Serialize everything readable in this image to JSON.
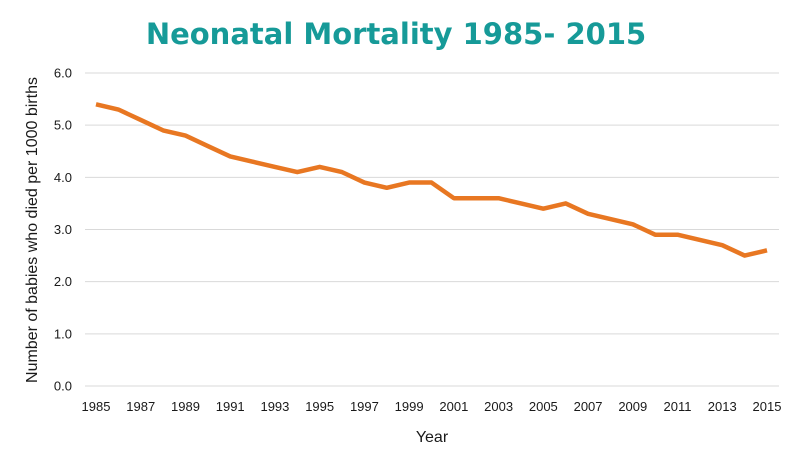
{
  "chart_data": {
    "type": "line",
    "title": "Neonatal Mortality 1985- 2015",
    "xlabel": "Year",
    "ylabel": "Number of babies who died per 1000 births",
    "ylim": [
      0,
      6
    ],
    "y_ticks": [
      "0.0",
      "1.0",
      "2.0",
      "3.0",
      "4.0",
      "5.0",
      "6.0"
    ],
    "x_ticks": [
      "1985",
      "1987",
      "1989",
      "1991",
      "1993",
      "1995",
      "1997",
      "1999",
      "2001",
      "2003",
      "2005",
      "2007",
      "2009",
      "2011",
      "2013",
      "2015"
    ],
    "grid": true,
    "legend": "none",
    "x": [
      1985,
      1986,
      1987,
      1988,
      1989,
      1990,
      1991,
      1992,
      1993,
      1994,
      1995,
      1996,
      1997,
      1998,
      1999,
      2000,
      2001,
      2002,
      2003,
      2004,
      2005,
      2006,
      2007,
      2008,
      2009,
      2010,
      2011,
      2012,
      2013,
      2014,
      2015
    ],
    "series": [
      {
        "color": "#e87722",
        "values": [
          5.4,
          5.3,
          5.1,
          4.9,
          4.8,
          4.6,
          4.4,
          4.3,
          4.2,
          4.1,
          4.2,
          4.1,
          3.9,
          3.8,
          3.9,
          3.9,
          3.6,
          3.6,
          3.6,
          3.5,
          3.4,
          3.5,
          3.3,
          3.2,
          3.1,
          2.9,
          2.9,
          2.8,
          2.7,
          2.5,
          2.6
        ]
      }
    ]
  }
}
